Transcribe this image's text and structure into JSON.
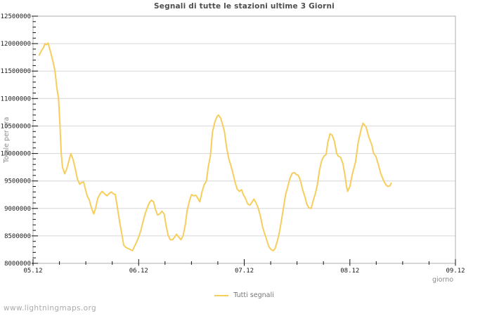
{
  "page": {
    "footer": "www.lightningmaps.org"
  },
  "colors": {
    "line": "#f6ce5c",
    "grid": "#d6d6d6",
    "border": "#aeaeae",
    "tick": "#111111",
    "background": "#ffffff"
  },
  "chart_data": {
    "type": "line",
    "title": "Segnali di tutte le stazioni ultime 3 Giorni",
    "xlabel": "giorno",
    "ylabel": "Totale per ora",
    "grid": true,
    "legend_position": "bottom-center",
    "x_axis": {
      "tick_labels": [
        "05.12",
        "06.12",
        "07.12",
        "08.12",
        "09.12"
      ],
      "range_hours": [
        0,
        96
      ],
      "major_every_hours": 24,
      "minor_every_hours": 6
    },
    "y_axis": {
      "min": 8000000,
      "max": 12500000,
      "major_step": 500000,
      "minor_step": 100000,
      "tick_labels": [
        "8000000",
        "8500000",
        "9000000",
        "9500000",
        "10000000",
        "10500000",
        "11000000",
        "11500000",
        "12000000",
        "12500000"
      ]
    },
    "legend": [
      {
        "name": "Tutti segnali",
        "color": "#f6ce5c"
      }
    ],
    "series": [
      {
        "name": "Tutti segnali",
        "color": "#f6ce5c",
        "points": [
          [
            1.4,
            11790000
          ],
          [
            1.9,
            11870000
          ],
          [
            2.4,
            11930000
          ],
          [
            2.7,
            12000000
          ],
          [
            3.0,
            11980000
          ],
          [
            3.4,
            12010000
          ],
          [
            3.7,
            11930000
          ],
          [
            4.2,
            11780000
          ],
          [
            4.6,
            11650000
          ],
          [
            5.0,
            11500000
          ],
          [
            5.4,
            11200000
          ],
          [
            5.8,
            11000000
          ],
          [
            6.1,
            10550000
          ],
          [
            6.4,
            10000000
          ],
          [
            6.7,
            9750000
          ],
          [
            7.2,
            9630000
          ],
          [
            7.7,
            9730000
          ],
          [
            8.2,
            9880000
          ],
          [
            8.6,
            10000000
          ],
          [
            9.1,
            9890000
          ],
          [
            9.6,
            9720000
          ],
          [
            10.1,
            9530000
          ],
          [
            10.6,
            9440000
          ],
          [
            11.0,
            9470000
          ],
          [
            11.5,
            9480000
          ],
          [
            11.8,
            9380000
          ],
          [
            12.3,
            9230000
          ],
          [
            12.8,
            9150000
          ],
          [
            13.3,
            9000000
          ],
          [
            13.8,
            8900000
          ],
          [
            14.2,
            9000000
          ],
          [
            14.7,
            9180000
          ],
          [
            15.2,
            9260000
          ],
          [
            15.7,
            9310000
          ],
          [
            16.2,
            9270000
          ],
          [
            16.8,
            9230000
          ],
          [
            17.3,
            9270000
          ],
          [
            17.8,
            9300000
          ],
          [
            18.2,
            9270000
          ],
          [
            18.7,
            9250000
          ],
          [
            19.2,
            9000000
          ],
          [
            19.7,
            8750000
          ],
          [
            20.2,
            8520000
          ],
          [
            20.6,
            8330000
          ],
          [
            21.1,
            8290000
          ],
          [
            21.6,
            8270000
          ],
          [
            22.1,
            8250000
          ],
          [
            22.6,
            8230000
          ],
          [
            23.0,
            8300000
          ],
          [
            23.5,
            8380000
          ],
          [
            24.0,
            8480000
          ],
          [
            24.5,
            8600000
          ],
          [
            25.0,
            8760000
          ],
          [
            25.4,
            8880000
          ],
          [
            25.9,
            9000000
          ],
          [
            26.4,
            9100000
          ],
          [
            26.9,
            9150000
          ],
          [
            27.4,
            9120000
          ],
          [
            27.8,
            8990000
          ],
          [
            28.3,
            8880000
          ],
          [
            28.8,
            8900000
          ],
          [
            29.3,
            8950000
          ],
          [
            29.8,
            8900000
          ],
          [
            30.2,
            8700000
          ],
          [
            30.7,
            8510000
          ],
          [
            31.2,
            8430000
          ],
          [
            31.7,
            8430000
          ],
          [
            32.2,
            8480000
          ],
          [
            32.6,
            8530000
          ],
          [
            33.1,
            8480000
          ],
          [
            33.6,
            8430000
          ],
          [
            34.1,
            8500000
          ],
          [
            34.6,
            8700000
          ],
          [
            35.0,
            8950000
          ],
          [
            35.5,
            9120000
          ],
          [
            36.0,
            9250000
          ],
          [
            36.5,
            9230000
          ],
          [
            37.0,
            9240000
          ],
          [
            37.4,
            9190000
          ],
          [
            37.9,
            9120000
          ],
          [
            38.4,
            9300000
          ],
          [
            38.9,
            9430000
          ],
          [
            39.4,
            9500000
          ],
          [
            39.8,
            9750000
          ],
          [
            40.3,
            9950000
          ],
          [
            40.8,
            10400000
          ],
          [
            41.3,
            10570000
          ],
          [
            41.8,
            10670000
          ],
          [
            42.1,
            10700000
          ],
          [
            42.6,
            10650000
          ],
          [
            43.0,
            10550000
          ],
          [
            43.5,
            10400000
          ],
          [
            44.0,
            10100000
          ],
          [
            44.5,
            9900000
          ],
          [
            45.0,
            9770000
          ],
          [
            45.4,
            9650000
          ],
          [
            45.9,
            9480000
          ],
          [
            46.4,
            9350000
          ],
          [
            46.9,
            9310000
          ],
          [
            47.4,
            9340000
          ],
          [
            47.8,
            9250000
          ],
          [
            48.3,
            9180000
          ],
          [
            48.8,
            9080000
          ],
          [
            49.3,
            9060000
          ],
          [
            49.8,
            9120000
          ],
          [
            50.2,
            9170000
          ],
          [
            50.7,
            9100000
          ],
          [
            51.2,
            9000000
          ],
          [
            51.7,
            8850000
          ],
          [
            52.2,
            8650000
          ],
          [
            52.6,
            8550000
          ],
          [
            53.1,
            8430000
          ],
          [
            53.6,
            8300000
          ],
          [
            54.1,
            8250000
          ],
          [
            54.6,
            8230000
          ],
          [
            55.0,
            8270000
          ],
          [
            55.5,
            8400000
          ],
          [
            56.0,
            8570000
          ],
          [
            56.5,
            8800000
          ],
          [
            57.0,
            9050000
          ],
          [
            57.4,
            9250000
          ],
          [
            57.9,
            9400000
          ],
          [
            58.4,
            9550000
          ],
          [
            58.9,
            9640000
          ],
          [
            59.4,
            9650000
          ],
          [
            59.8,
            9620000
          ],
          [
            60.3,
            9600000
          ],
          [
            60.8,
            9500000
          ],
          [
            61.3,
            9330000
          ],
          [
            61.8,
            9210000
          ],
          [
            62.2,
            9080000
          ],
          [
            62.7,
            9010000
          ],
          [
            63.2,
            9000000
          ],
          [
            63.7,
            9150000
          ],
          [
            64.2,
            9280000
          ],
          [
            64.6,
            9420000
          ],
          [
            65.1,
            9700000
          ],
          [
            65.6,
            9870000
          ],
          [
            66.1,
            9950000
          ],
          [
            66.6,
            9980000
          ],
          [
            67.0,
            10200000
          ],
          [
            67.5,
            10360000
          ],
          [
            68.0,
            10330000
          ],
          [
            68.5,
            10220000
          ],
          [
            69.0,
            10000000
          ],
          [
            69.4,
            9950000
          ],
          [
            69.9,
            9930000
          ],
          [
            70.4,
            9820000
          ],
          [
            70.9,
            9600000
          ],
          [
            71.2,
            9420000
          ],
          [
            71.5,
            9310000
          ],
          [
            72.0,
            9400000
          ],
          [
            72.5,
            9600000
          ],
          [
            73.3,
            9850000
          ],
          [
            73.9,
            10200000
          ],
          [
            74.6,
            10450000
          ],
          [
            75.0,
            10550000
          ],
          [
            75.7,
            10480000
          ],
          [
            76.3,
            10300000
          ],
          [
            77.0,
            10150000
          ],
          [
            77.4,
            10000000
          ],
          [
            77.9,
            9950000
          ],
          [
            78.4,
            9820000
          ],
          [
            79.0,
            9640000
          ],
          [
            79.7,
            9500000
          ],
          [
            80.2,
            9430000
          ],
          [
            80.6,
            9400000
          ],
          [
            81.1,
            9410000
          ],
          [
            81.4,
            9460000
          ]
        ]
      }
    ]
  }
}
